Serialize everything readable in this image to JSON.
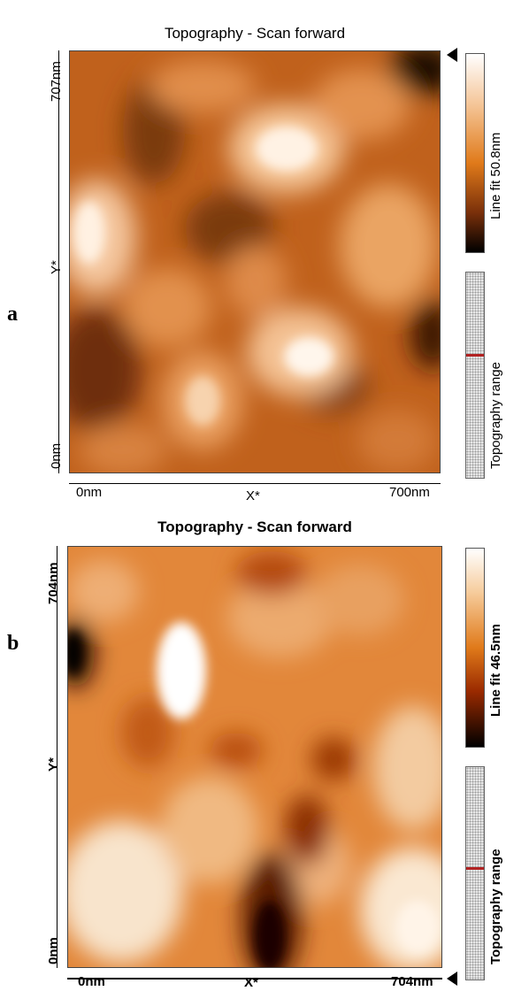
{
  "panels": [
    {
      "letter": "a",
      "title": "Topography - Scan forward",
      "y_top": "707nm",
      "y_bottom": "0nm",
      "y_axis": "Y*",
      "x_left": "0nm",
      "x_axis": "X*",
      "x_right": "700nm",
      "colorbar_label": "Line fit 50.8nm",
      "range_label": "Topography range"
    },
    {
      "letter": "b",
      "title": "Topography - Scan forward",
      "y_top": "704nm",
      "y_bottom": "0nm",
      "y_axis": "Y*",
      "x_left": "0nm",
      "x_axis": "X*",
      "x_right": "704nm",
      "colorbar_label": "Line fit 46.5nm",
      "range_label": "Topography range"
    }
  ],
  "colors": {
    "colormap_dark": "#000000",
    "colormap_mid": "#e07a1a",
    "colormap_light": "#ffffff",
    "range_marker": "#b22222"
  }
}
